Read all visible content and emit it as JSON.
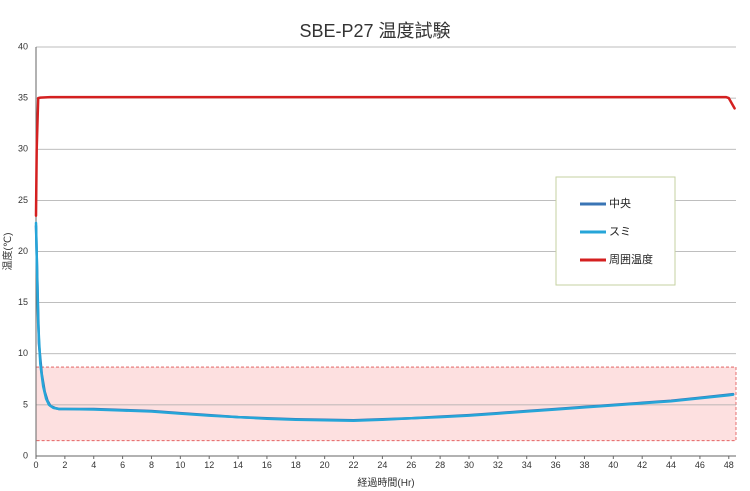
{
  "chart_data": {
    "type": "line",
    "title": "SBE-P27 温度試験",
    "xlabel": "経過時間(Hr)",
    "ylabel": "温度(℃)",
    "xlim": [
      0,
      48.5
    ],
    "ylim": [
      0,
      40
    ],
    "x_ticks": [
      0,
      2,
      4,
      6,
      8,
      10,
      12,
      14,
      16,
      18,
      20,
      22,
      24,
      26,
      28,
      30,
      32,
      34,
      36,
      38,
      40,
      42,
      44,
      46,
      48
    ],
    "y_ticks": [
      0,
      5,
      10,
      15,
      20,
      25,
      30,
      35,
      40
    ],
    "grid": "horizontal",
    "legend_position": "right",
    "band": {
      "ymin": 1.5,
      "ymax": 8.7,
      "color": "#fde0e0",
      "border": "#e05050"
    },
    "series": [
      {
        "name": "中央",
        "color": "#3a75b5",
        "x": [
          0,
          0.2,
          0.4,
          0.6,
          0.8,
          1.0,
          1.3,
          1.6,
          2,
          4,
          6,
          8,
          10,
          12,
          14,
          16,
          18,
          20,
          22,
          24,
          26,
          28,
          30,
          32,
          34,
          36,
          38,
          40,
          42,
          44,
          46,
          48,
          48.3
        ],
        "values": [
          22.5,
          11.0,
          8.0,
          6.3,
          5.4,
          4.9,
          4.7,
          4.6,
          4.6,
          4.6,
          4.5,
          4.4,
          4.2,
          4.0,
          3.8,
          3.7,
          3.6,
          3.55,
          3.5,
          3.6,
          3.7,
          3.85,
          4.0,
          4.2,
          4.4,
          4.6,
          4.8,
          5.0,
          5.2,
          5.4,
          5.7,
          6.0,
          6.05
        ]
      },
      {
        "name": "スミ",
        "color": "#26a5d8",
        "x": [
          0,
          0.15,
          0.3,
          0.5,
          0.7,
          0.9,
          1.2,
          1.6,
          2,
          4,
          6,
          8,
          10,
          12,
          14,
          16,
          18,
          20,
          22,
          24,
          26,
          28,
          30,
          32,
          34,
          36,
          38,
          40,
          42,
          44,
          46,
          48,
          48.3
        ],
        "values": [
          22.8,
          13.0,
          9.0,
          6.8,
          5.6,
          5.0,
          4.7,
          4.6,
          4.6,
          4.55,
          4.45,
          4.35,
          4.15,
          3.95,
          3.8,
          3.65,
          3.55,
          3.5,
          3.45,
          3.55,
          3.7,
          3.8,
          3.95,
          4.15,
          4.35,
          4.55,
          4.75,
          4.95,
          5.15,
          5.35,
          5.65,
          5.95,
          6.0
        ]
      },
      {
        "name": "周囲温度",
        "color": "#d42020",
        "x": [
          0,
          0.05,
          0.15,
          0.3,
          1,
          5,
          10,
          15,
          20,
          25,
          30,
          35,
          40,
          45,
          47.8,
          48.0,
          48.2,
          48.4
        ],
        "values": [
          23.5,
          30.0,
          35.0,
          35.05,
          35.1,
          35.1,
          35.1,
          35.1,
          35.1,
          35.1,
          35.1,
          35.1,
          35.1,
          35.1,
          35.1,
          35.0,
          34.5,
          34.0
        ]
      }
    ]
  }
}
